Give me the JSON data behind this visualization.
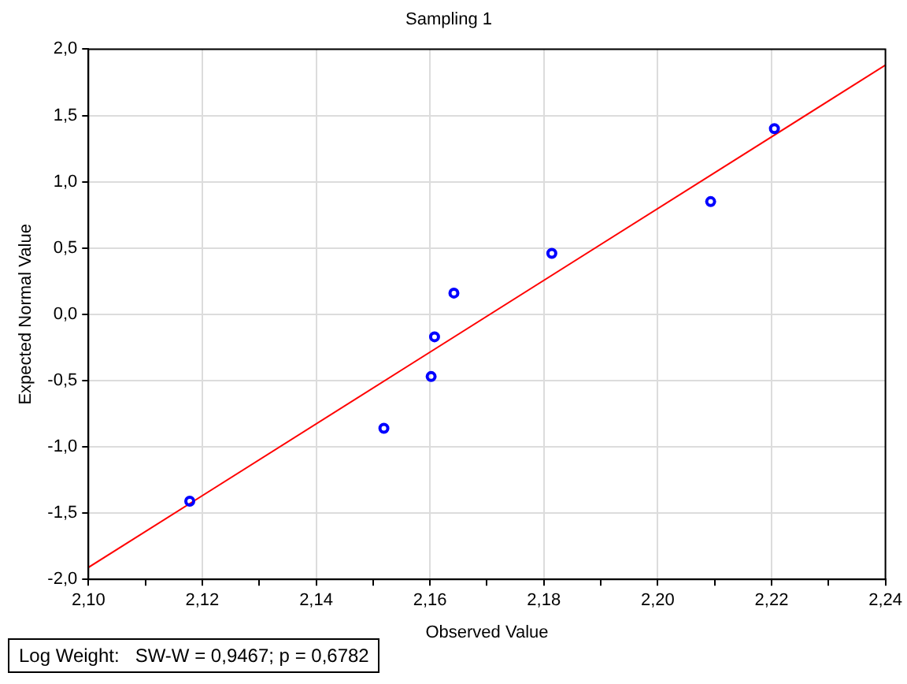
{
  "chart_data": {
    "type": "scatter",
    "title": "Sampling 1",
    "xlabel": "Observed Value",
    "ylabel": "Expected Normal Value",
    "annotations": [
      "Log Weight:   SW-W = 0,9467; p = 0,6782"
    ],
    "series": [
      {
        "type": "scatter",
        "color": "#0000ff",
        "marker": "circle",
        "x": [
          2.1178,
          2.1519,
          2.1602,
          2.1608,
          2.1642,
          2.1814,
          2.2093,
          2.2205
        ],
        "values": [
          -1.41,
          -0.86,
          -0.47,
          -0.17,
          0.16,
          0.46,
          0.85,
          1.4
        ]
      },
      {
        "type": "line",
        "color": "#ff0000",
        "marker": "none",
        "line_style": "solid",
        "x": [
          2.1,
          2.24
        ],
        "values": [
          -1.91,
          1.88
        ]
      }
    ],
    "xlim": [
      2.1,
      2.24
    ],
    "xticks": [
      {
        "value": 2.1,
        "label": "2,10"
      },
      {
        "value": 2.11,
        "label": null
      },
      {
        "value": 2.12,
        "label": "2,12"
      },
      {
        "value": 2.13,
        "label": null
      },
      {
        "value": 2.14,
        "label": "2,14"
      },
      {
        "value": 2.15,
        "label": null
      },
      {
        "value": 2.16,
        "label": "2,16"
      },
      {
        "value": 2.17,
        "label": null
      },
      {
        "value": 2.18,
        "label": "2,18"
      },
      {
        "value": 2.19,
        "label": null
      },
      {
        "value": 2.2,
        "label": "2,20"
      },
      {
        "value": 2.21,
        "label": null
      },
      {
        "value": 2.22,
        "label": "2,22"
      },
      {
        "value": 2.23,
        "label": null
      },
      {
        "value": 2.24,
        "label": "2,24"
      }
    ],
    "ylim": [
      -2.0,
      2.0
    ],
    "yticks": [
      {
        "value": -2.0,
        "label": "-2,0"
      },
      {
        "value": -1.5,
        "label": "-1,5"
      },
      {
        "value": -1.0,
        "label": "-1,0"
      },
      {
        "value": -0.5,
        "label": "-0,5"
      },
      {
        "value": 0.0,
        "label": "0,0"
      },
      {
        "value": 0.5,
        "label": "0,5"
      },
      {
        "value": 1.0,
        "label": "1,0"
      },
      {
        "value": 1.5,
        "label": "1,5"
      },
      {
        "value": 2.0,
        "label": "2,0"
      }
    ],
    "grid": true,
    "legend": false
  }
}
